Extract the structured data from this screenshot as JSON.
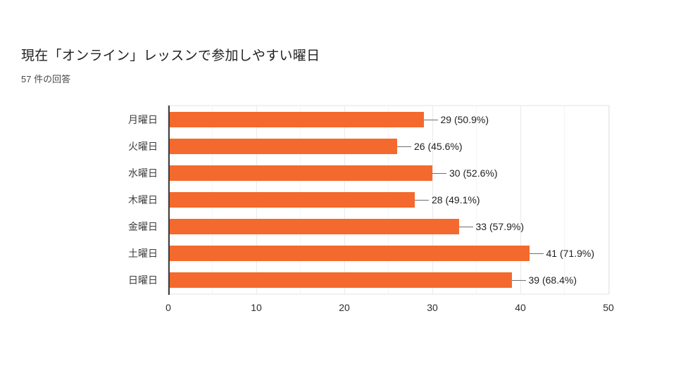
{
  "header": {
    "title": "現在「オンライン」レッスンで参加しやすい曜日",
    "subtitle": "57 件の回答"
  },
  "chart_data": {
    "type": "bar",
    "orientation": "horizontal",
    "title": "現在「オンライン」レッスンで参加しやすい曜日",
    "subtitle": "57 件の回答",
    "total_responses": 57,
    "categories": [
      "月曜日",
      "火曜日",
      "水曜日",
      "木曜日",
      "金曜日",
      "土曜日",
      "日曜日"
    ],
    "values": [
      29,
      26,
      30,
      28,
      33,
      41,
      39
    ],
    "value_labels": [
      "29 (50.9%)",
      "26 (45.6%)",
      "30 (52.6%)",
      "28 (49.1%)",
      "33 (57.9%)",
      "41 (71.9%)",
      "39 (68.4%)"
    ],
    "xlabel": "",
    "ylabel": "",
    "xlim": [
      0,
      50
    ],
    "x_ticks": [
      0,
      10,
      20,
      30,
      40,
      50
    ],
    "minor_grid_step": 5,
    "grid": true,
    "legend": "none",
    "bar_color": "#f4692d",
    "axis_color": "#3b3b3b",
    "major_grid_color": "#e9e9e9",
    "minor_grid_color": "#f4f4f4"
  }
}
